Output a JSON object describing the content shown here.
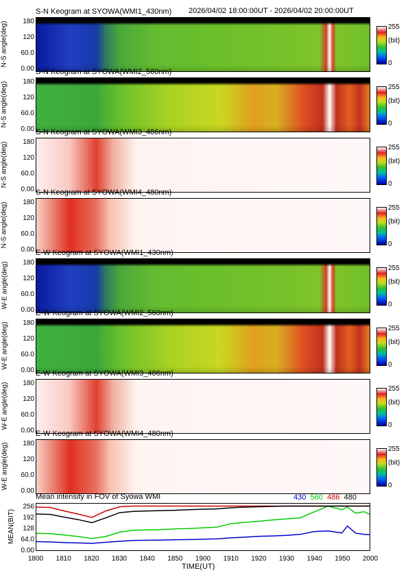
{
  "header": {
    "time_range": "2026/04/02 18:00:00UT - 2026/04/02 20:00:00UT"
  },
  "keograms": [
    {
      "title": "S-N Keogram at SYOWA(WMI1_430nm)",
      "ylabel": "N-S angle(deg)",
      "type": "dark"
    },
    {
      "title": "S-N Keogram at SYOWA(WMI2_560nm)",
      "ylabel": "N-S angle(deg)",
      "type": "mid"
    },
    {
      "title": "S-N Keogram at SYOWA(WMI3_486nm)",
      "ylabel": "N-S angle(deg)",
      "type": "sat"
    },
    {
      "title": "S-N Keogram at SYOWA(WMI4_480nm)",
      "ylabel": "N-S angle(deg)",
      "type": "sat2"
    },
    {
      "title": "E-W Keogram at SYOWA(WMI1_430nm)",
      "ylabel": "W-E angle(deg)",
      "type": "dark"
    },
    {
      "title": "E-W Keogram at SYOWA(WMI2_560nm)",
      "ylabel": "W-E angle(deg)",
      "type": "mid"
    },
    {
      "title": "E-W Keogram at SYOWA(WMI3_486nm)",
      "ylabel": "W-E angle(deg)",
      "type": "sat"
    },
    {
      "title": "E-W Keogram at SYOWA(WMI4_480nm)",
      "ylabel": "W-E angle(deg)",
      "type": "sat2"
    }
  ],
  "keogram_yticks": [
    "180",
    "120",
    "60.0",
    "0.00"
  ],
  "colorbar": {
    "max": "255",
    "unit": "(bit)",
    "min": "0"
  },
  "chart_data": {
    "type": "line",
    "title": "Mean intensity in FOV of Syowa WMI",
    "xlabel": "TIME(UT)",
    "ylabel": "MEAN(BIT)",
    "xlim": [
      1800,
      2000
    ],
    "ylim": [
      0,
      270
    ],
    "xticks": [
      "1800",
      "1810",
      "1820",
      "1830",
      "1840",
      "1850",
      "1900",
      "1910",
      "1920",
      "1930",
      "1940",
      "1950",
      "2000"
    ],
    "yticks": [
      "256",
      "192",
      "128",
      "64.0",
      "0.00"
    ],
    "x": [
      0,
      5,
      10,
      15,
      20,
      25,
      30,
      35,
      40,
      45,
      50,
      55,
      60,
      65,
      70,
      75,
      80,
      85,
      90,
      95,
      100,
      105,
      110,
      112,
      115,
      118,
      120
    ],
    "series": [
      {
        "name": "430",
        "color": "#0000cc",
        "values": [
          50,
          48,
          45,
          43,
          40,
          46,
          52,
          57,
          58,
          59,
          61,
          62,
          64,
          66,
          72,
          76,
          81,
          83,
          86,
          92,
          108,
          112,
          100,
          140,
          99,
          92,
          90
        ]
      },
      {
        "name": "560",
        "color": "#00cc00",
        "values": [
          98,
          96,
          88,
          80,
          68,
          80,
          105,
          116,
          118,
          120,
          124,
          126,
          130,
          134,
          154,
          162,
          168,
          176,
          182,
          188,
          222,
          256,
          235,
          250,
          215,
          224,
          208
        ]
      },
      {
        "name": "486",
        "color": "#cc0000",
        "values": [
          250,
          248,
          228,
          210,
          190,
          228,
          252,
          256,
          256,
          256,
          256,
          256,
          256,
          256,
          256,
          256,
          256,
          256,
          256,
          256,
          256,
          256,
          256,
          256,
          256,
          256,
          256
        ]
      },
      {
        "name": "480",
        "color": "#000000",
        "values": [
          210,
          208,
          192,
          178,
          160,
          188,
          218,
          225,
          228,
          230,
          232,
          235,
          238,
          240,
          246,
          250,
          252,
          254,
          256,
          256,
          256,
          256,
          256,
          256,
          256,
          256,
          256
        ]
      }
    ]
  }
}
